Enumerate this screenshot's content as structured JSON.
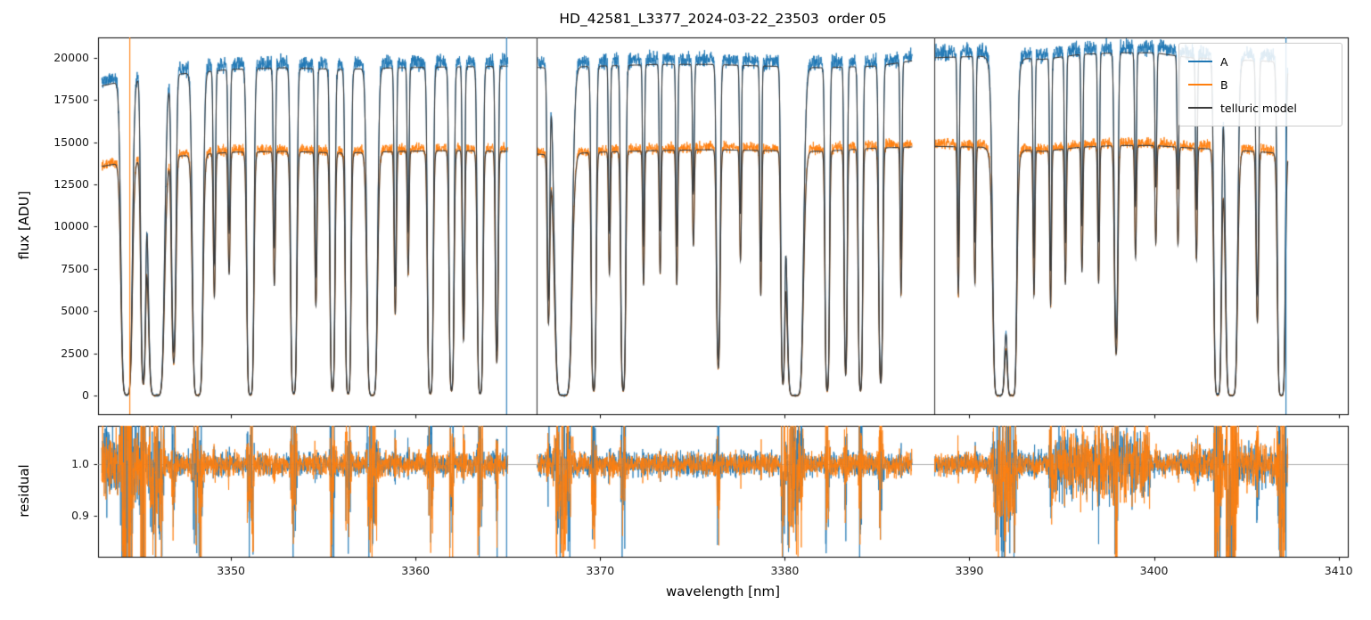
{
  "figure": {
    "title": "HD_42581_L3377_2024-03-22_23503  order 05",
    "xlabel": "wavelength [nm]",
    "background": "#ffffff"
  },
  "legend": {
    "position": "upper right",
    "entries": [
      {
        "label": "A",
        "color": "#1f77b4"
      },
      {
        "label": "B",
        "color": "#ff7f0e"
      },
      {
        "label": "telluric model",
        "color": "#3b3b3b"
      }
    ]
  },
  "chart_data": [
    {
      "type": "line",
      "panel": "flux",
      "title": "HD_42581_L3377_2024-03-22_23503  order 05",
      "xlabel": "",
      "ylabel": "flux [ADU]",
      "xlim": [
        3342.8,
        3410.5
      ],
      "ylim": [
        -1100,
        21200
      ],
      "xticks": [
        3350,
        3360,
        3370,
        3380,
        3390,
        3400,
        3410
      ],
      "yticks": [
        0,
        2500,
        5000,
        7500,
        10000,
        12500,
        15000,
        17500,
        20000
      ],
      "grid": false,
      "legend_position": "upper right",
      "wavelength_range": [
        3343.0,
        3407.25
      ],
      "gaps": [
        [
          3365.0,
          3366.58
        ],
        [
          3386.9,
          3388.12
        ]
      ],
      "series": [
        {
          "name": "A",
          "color": "#1f77b4",
          "continuum_adu": [
            [
              3343.0,
              18600
            ],
            [
              3344.5,
              19000
            ],
            [
              3347.0,
              19300
            ],
            [
              3350.0,
              19600
            ],
            [
              3353.0,
              19700
            ],
            [
              3356.0,
              19600
            ],
            [
              3359.0,
              19700
            ],
            [
              3362.0,
              19750
            ],
            [
              3365.0,
              19800
            ],
            [
              3367.0,
              19700
            ],
            [
              3370.0,
              19800
            ],
            [
              3373.0,
              19900
            ],
            [
              3376.0,
              19900
            ],
            [
              3379.0,
              19800
            ],
            [
              3382.0,
              19700
            ],
            [
              3385.0,
              19800
            ],
            [
              3388.0,
              20300
            ],
            [
              3391.0,
              20400
            ],
            [
              3394.0,
              20200
            ],
            [
              3396.0,
              20500
            ],
            [
              3398.0,
              20600
            ],
            [
              3400.0,
              20600
            ],
            [
              3402.0,
              20300
            ],
            [
              3404.0,
              20200
            ],
            [
              3406.0,
              20100
            ],
            [
              3407.3,
              20000
            ]
          ]
        },
        {
          "name": "B",
          "color": "#ff7f0e",
          "continuum_adu": [
            [
              3343.0,
              13700
            ],
            [
              3344.5,
              14000
            ],
            [
              3347.0,
              14300
            ],
            [
              3350.0,
              14550
            ],
            [
              3353.0,
              14600
            ],
            [
              3356.0,
              14500
            ],
            [
              3359.0,
              14600
            ],
            [
              3362.0,
              14650
            ],
            [
              3365.0,
              14600
            ],
            [
              3367.0,
              14400
            ],
            [
              3370.0,
              14550
            ],
            [
              3373.0,
              14650
            ],
            [
              3376.0,
              14700
            ],
            [
              3379.0,
              14650
            ],
            [
              3382.0,
              14600
            ],
            [
              3385.0,
              14800
            ],
            [
              3388.0,
              14900
            ],
            [
              3391.0,
              14850
            ],
            [
              3394.0,
              14600
            ],
            [
              3396.0,
              14850
            ],
            [
              3398.0,
              14950
            ],
            [
              3400.0,
              14950
            ],
            [
              3402.0,
              14800
            ],
            [
              3404.0,
              14700
            ],
            [
              3406.0,
              14550
            ],
            [
              3407.3,
              14450
            ]
          ]
        },
        {
          "name": "telluric model",
          "color": "#3b3b3b",
          "scaled_to": [
            "A",
            "B"
          ]
        }
      ],
      "model_scale": {
        "A": 0.985,
        "B": 0.99
      },
      "noise_adu": {
        "A": 420,
        "B": 280,
        "floor": 60
      },
      "telluric_lines_nm_sigma_tau": [
        [
          3344.35,
          0.22,
          6
        ],
        [
          3345.25,
          0.12,
          3
        ],
        [
          3345.95,
          0.3,
          8
        ],
        [
          3346.9,
          0.12,
          2
        ],
        [
          3348.2,
          0.2,
          7
        ],
        [
          3349.1,
          0.07,
          0.9
        ],
        [
          3349.9,
          0.07,
          0.7
        ],
        [
          3351.05,
          0.14,
          6
        ],
        [
          3352.35,
          0.07,
          0.8
        ],
        [
          3353.4,
          0.13,
          5
        ],
        [
          3354.6,
          0.07,
          1.0
        ],
        [
          3355.5,
          0.11,
          4
        ],
        [
          3356.35,
          0.12,
          5
        ],
        [
          3357.65,
          0.2,
          7
        ],
        [
          3358.9,
          0.07,
          1.1
        ],
        [
          3359.6,
          0.06,
          0.7
        ],
        [
          3360.8,
          0.12,
          5
        ],
        [
          3361.95,
          0.11,
          4
        ],
        [
          3362.6,
          0.07,
          1.5
        ],
        [
          3363.5,
          0.12,
          5
        ],
        [
          3364.4,
          0.08,
          2.0
        ],
        [
          3367.2,
          0.08,
          1.2
        ],
        [
          3368.0,
          0.32,
          8
        ],
        [
          3369.65,
          0.11,
          4
        ],
        [
          3370.5,
          0.06,
          0.7
        ],
        [
          3371.25,
          0.11,
          4
        ],
        [
          3372.35,
          0.06,
          0.8
        ],
        [
          3373.25,
          0.06,
          0.7
        ],
        [
          3374.15,
          0.06,
          0.8
        ],
        [
          3375.05,
          0.06,
          0.5
        ],
        [
          3376.4,
          0.1,
          2.2
        ],
        [
          3377.6,
          0.06,
          0.6
        ],
        [
          3378.7,
          0.06,
          0.9
        ],
        [
          3379.9,
          0.1,
          3
        ],
        [
          3380.55,
          0.3,
          9
        ],
        [
          3382.3,
          0.1,
          4
        ],
        [
          3383.3,
          0.08,
          2.5
        ],
        [
          3384.1,
          0.1,
          4
        ],
        [
          3385.2,
          0.1,
          3
        ],
        [
          3386.3,
          0.06,
          0.9
        ],
        [
          3389.4,
          0.06,
          0.9
        ],
        [
          3390.3,
          0.06,
          0.8
        ],
        [
          3391.6,
          0.22,
          8
        ],
        [
          3391.9,
          0.45,
          1.0
        ],
        [
          3392.3,
          0.18,
          8
        ],
        [
          3393.5,
          0.06,
          0.9
        ],
        [
          3394.4,
          0.06,
          1.0
        ],
        [
          3395.2,
          0.06,
          0.8
        ],
        [
          3396.1,
          0.06,
          0.7
        ],
        [
          3397.0,
          0.06,
          0.8
        ],
        [
          3397.95,
          0.1,
          1.8
        ],
        [
          3399.0,
          0.06,
          0.6
        ],
        [
          3400.1,
          0.06,
          0.5
        ],
        [
          3401.3,
          0.06,
          0.5
        ],
        [
          3402.3,
          0.06,
          0.6
        ],
        [
          3403.45,
          0.15,
          6
        ],
        [
          3404.2,
          0.22,
          8
        ],
        [
          3405.6,
          0.08,
          1.2
        ],
        [
          3406.9,
          0.15,
          7
        ]
      ],
      "vertical_spikes": [
        {
          "x": 3344.52,
          "series": "B"
        },
        {
          "x": 3364.93,
          "series": "A"
        },
        {
          "x": 3366.58,
          "series": "telluric"
        },
        {
          "x": 3388.12,
          "series": "telluric"
        },
        {
          "x": 3407.15,
          "series": "A"
        }
      ]
    },
    {
      "type": "line",
      "panel": "residual",
      "xlabel": "wavelength [nm]",
      "ylabel": "residual",
      "ylim": [
        0.82,
        1.075
      ],
      "yticks": [
        0.9,
        1.0
      ],
      "baseline": 1.0,
      "noise_sigma": 0.022,
      "messy_regions": [
        [
          3343.0,
          3345.4,
          3.5
        ],
        [
          3394.3,
          3399.8,
          3.0
        ],
        [
          3402.0,
          3407.3,
          1.8
        ]
      ],
      "series": [
        {
          "name": "A",
          "color": "#1f77b4"
        },
        {
          "name": "B",
          "color": "#ff7f0e"
        }
      ]
    }
  ]
}
